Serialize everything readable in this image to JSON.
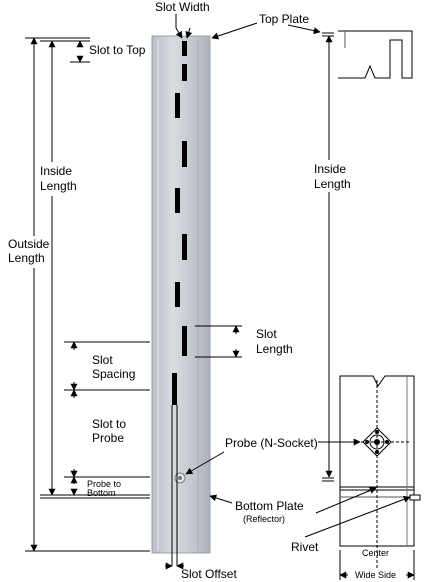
{
  "labels": {
    "slot_width": "Slot Width",
    "top_plate": "Top Plate",
    "slot_to_top": "Slot to Top",
    "inside_length_left_1": "Inside",
    "inside_length_left_2": "Length",
    "outside_length_1": "Outside",
    "outside_length_2": "Length",
    "inside_length_right_1": "Inside",
    "inside_length_right_2": "Length",
    "slot_length_1": "Slot",
    "slot_length_2": "Length",
    "slot_spacing_1": "Slot",
    "slot_spacing_2": "Spacing",
    "slot_to_probe_1": "Slot to",
    "slot_to_probe_2": "Probe",
    "probe_to_bottom_1": "Probe to",
    "probe_to_bottom_2": "Bottom",
    "probe": "Probe (N-Socket)",
    "bottom_plate": "Bottom Plate",
    "reflector": "(Reflector)",
    "rivet": "Rivet",
    "center": "Center",
    "wide_side": "Wide Side",
    "slot_offset": "Slot Offset"
  },
  "colors": {
    "metal": "#c9cdd3",
    "metal_edge": "#8d939b",
    "slot": "#000000",
    "line": "#000000"
  },
  "icons": {
    "probe_socket": "n-socket-icon",
    "rivet": "rivet-icon"
  }
}
